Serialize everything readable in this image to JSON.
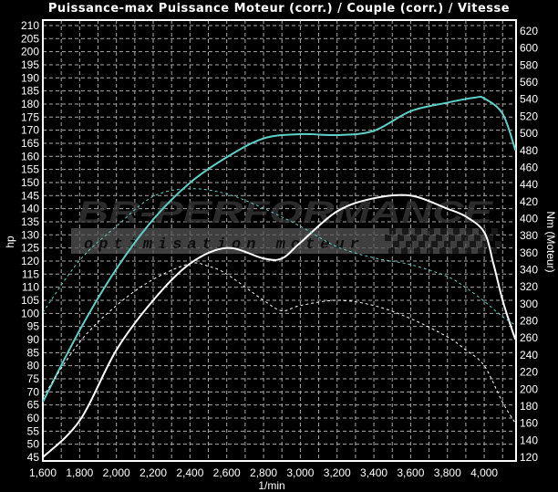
{
  "chart_data": {
    "type": "line",
    "title": "Puissance-max Puissance Moteur (corr.) / Couple (corr.) / Vitesse",
    "xlabel": "1/min",
    "ylabel_left": "hp",
    "ylabel_right": "Nm (Moteur)",
    "xlim": [
      1600,
      4170
    ],
    "ylim_left": [
      45,
      212
    ],
    "ylim_right": [
      120,
      640
    ],
    "x_ticks": [
      "1,600",
      "1,800",
      "2,000",
      "2,200",
      "2,400",
      "2,600",
      "2,800",
      "3,000",
      "3,200",
      "3,400",
      "3,600",
      "3,800",
      "4,000"
    ],
    "grid": true,
    "background": "#000000",
    "series": [
      {
        "axis": "right",
        "color": "#5fd0c8",
        "style": "solid",
        "x": [
          1600,
          1800,
          2000,
          2200,
          2400,
          2600,
          2800,
          3000,
          3200,
          3400,
          3600,
          3800,
          3950,
          4000,
          4100,
          4170
        ],
        "y": [
          185,
          269,
          341,
          399,
          442,
          472,
          494,
          499,
          498,
          503,
          526,
          536,
          542,
          541,
          523,
          480
        ]
      },
      {
        "axis": "left",
        "color": "#ffffff",
        "style": "solid",
        "x": [
          1600,
          1800,
          2000,
          2200,
          2400,
          2600,
          2800,
          2900,
          3000,
          3200,
          3400,
          3600,
          3800,
          3900,
          4000,
          4050,
          4100,
          4150,
          4170
        ],
        "y": [
          45,
          59,
          86,
          105,
          119,
          125,
          121,
          121,
          127,
          139,
          144,
          145,
          140,
          137,
          131,
          119,
          105,
          94,
          90
        ]
      },
      {
        "axis": "right",
        "color": "#5fd0c8",
        "style": "dotted",
        "x": [
          1600,
          1800,
          2000,
          2200,
          2400,
          2600,
          2800,
          3000,
          3200,
          3400,
          3600,
          3800,
          3900,
          4000,
          4100,
          4170
        ],
        "y": [
          290,
          351,
          391,
          426,
          435,
          429,
          412,
          391,
          367,
          354,
          346,
          332,
          319,
          303,
          285,
          275
        ]
      },
      {
        "axis": "left",
        "color": "#ffffff",
        "style": "dotted",
        "x": [
          1600,
          1800,
          2000,
          2200,
          2400,
          2500,
          2600,
          2800,
          2900,
          3000,
          3200,
          3400,
          3600,
          3800,
          3900,
          4000,
          4100,
          4170
        ],
        "y": [
          68,
          89,
          103,
          113,
          119,
          118,
          115,
          105,
          101,
          103,
          105,
          103,
          98,
          91,
          86,
          80,
          66,
          58
        ]
      }
    ]
  },
  "logo": {
    "brand": "BR-Performance",
    "tagline": "optimisation moteur"
  }
}
